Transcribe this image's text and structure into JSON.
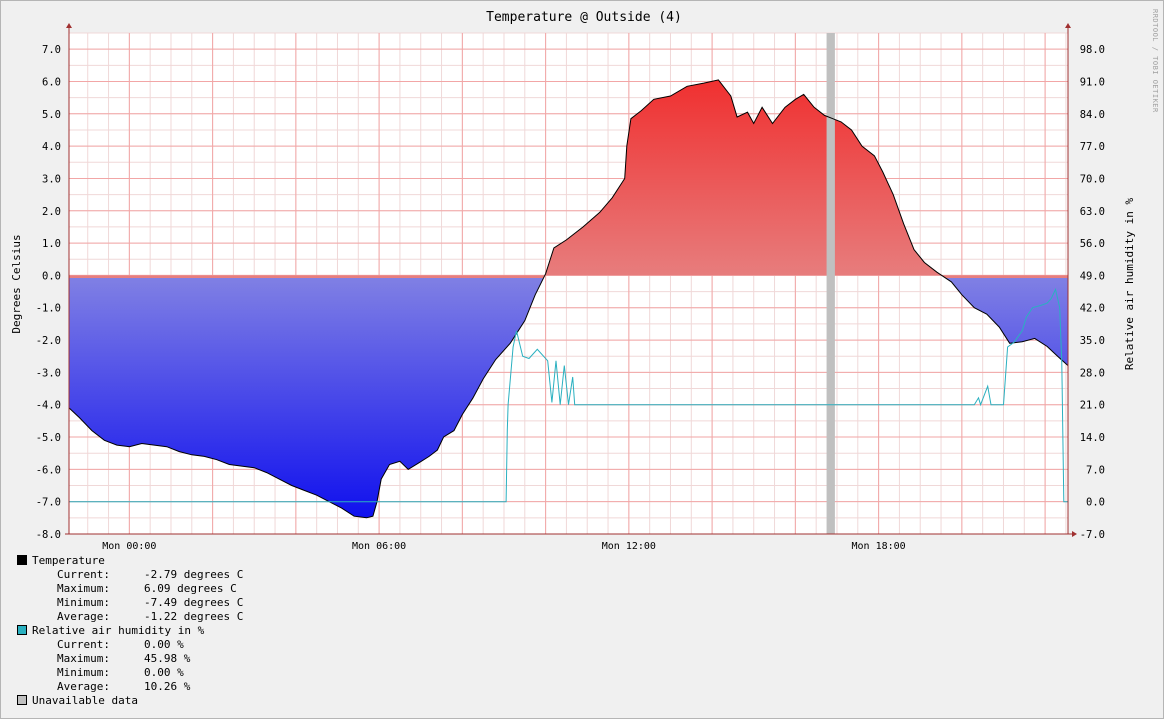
{
  "watermark": "RRDTOOL / TOBI OETIKER",
  "chart_data": {
    "type": "area",
    "title": "Temperature @ Outside (4)",
    "ylabel": "Degrees Celsius",
    "y2label": "Relative air humidity in %",
    "ylim": [
      -8.0,
      7.5
    ],
    "y2lim": [
      -7.0,
      101.5
    ],
    "yticks": [
      "7.0",
      "6.0",
      "5.0",
      "4.0",
      "3.0",
      "2.0",
      "1.0",
      "0.0",
      "-1.0",
      "-2.0",
      "-3.0",
      "-4.0",
      "-5.0",
      "-6.0",
      "-7.0",
      "-8.0"
    ],
    "y2ticks": [
      "98.0",
      "91.0",
      "84.0",
      "77.0",
      "70.0",
      "63.0",
      "56.0",
      "49.0",
      "42.0",
      "35.0",
      "28.0",
      "21.0",
      "14.0",
      "7.0",
      "0.0",
      "-7.0"
    ],
    "xlim": [
      -1.45,
      22.55
    ],
    "xunit": "hours",
    "xticks": [
      {
        "x": 0,
        "label": "Mon 00:00"
      },
      {
        "x": 6,
        "label": "Mon 06:00"
      },
      {
        "x": 12,
        "label": "Mon 12:00"
      },
      {
        "x": 18,
        "label": "Mon 18:00"
      }
    ],
    "grid": true,
    "series": [
      {
        "name": "Temperature",
        "axis": "left",
        "color_positive": "#f03030",
        "color_negative": "#1010ee",
        "points": [
          [
            -1.45,
            -4.1
          ],
          [
            -1.2,
            -4.4
          ],
          [
            -0.9,
            -4.8
          ],
          [
            -0.6,
            -5.1
          ],
          [
            -0.3,
            -5.25
          ],
          [
            0,
            -5.3
          ],
          [
            0.3,
            -5.2
          ],
          [
            0.6,
            -5.25
          ],
          [
            0.9,
            -5.3
          ],
          [
            1.2,
            -5.45
          ],
          [
            1.5,
            -5.55
          ],
          [
            1.8,
            -5.6
          ],
          [
            2.1,
            -5.7
          ],
          [
            2.4,
            -5.85
          ],
          [
            2.7,
            -5.9
          ],
          [
            3.0,
            -5.95
          ],
          [
            3.3,
            -6.1
          ],
          [
            3.6,
            -6.3
          ],
          [
            3.9,
            -6.5
          ],
          [
            4.2,
            -6.65
          ],
          [
            4.5,
            -6.8
          ],
          [
            4.8,
            -7.0
          ],
          [
            5.1,
            -7.2
          ],
          [
            5.4,
            -7.45
          ],
          [
            5.7,
            -7.5
          ],
          [
            5.85,
            -7.45
          ],
          [
            5.95,
            -7.0
          ],
          [
            6.05,
            -6.3
          ],
          [
            6.25,
            -5.85
          ],
          [
            6.5,
            -5.75
          ],
          [
            6.7,
            -6.0
          ],
          [
            6.95,
            -5.8
          ],
          [
            7.2,
            -5.6
          ],
          [
            7.4,
            -5.4
          ],
          [
            7.55,
            -5.0
          ],
          [
            7.8,
            -4.8
          ],
          [
            8.0,
            -4.3
          ],
          [
            8.25,
            -3.8
          ],
          [
            8.5,
            -3.2
          ],
          [
            8.8,
            -2.6
          ],
          [
            9.15,
            -2.1
          ],
          [
            9.5,
            -1.4
          ],
          [
            9.75,
            -0.6
          ],
          [
            10.0,
            0.05
          ],
          [
            10.2,
            0.85
          ],
          [
            10.5,
            1.1
          ],
          [
            10.9,
            1.5
          ],
          [
            11.3,
            1.95
          ],
          [
            11.6,
            2.4
          ],
          [
            11.9,
            3.0
          ],
          [
            11.95,
            4.0
          ],
          [
            12.05,
            4.85
          ],
          [
            12.3,
            5.1
          ],
          [
            12.6,
            5.45
          ],
          [
            13.0,
            5.55
          ],
          [
            13.4,
            5.85
          ],
          [
            13.8,
            5.95
          ],
          [
            14.15,
            6.05
          ],
          [
            14.45,
            5.55
          ],
          [
            14.6,
            4.9
          ],
          [
            14.85,
            5.05
          ],
          [
            15.0,
            4.7
          ],
          [
            15.2,
            5.2
          ],
          [
            15.45,
            4.7
          ],
          [
            15.75,
            5.2
          ],
          [
            16.0,
            5.45
          ],
          [
            16.2,
            5.6
          ],
          [
            16.45,
            5.2
          ],
          [
            16.7,
            4.95
          ],
          [
            16.9,
            4.85
          ],
          [
            17.1,
            4.75
          ],
          [
            17.35,
            4.5
          ],
          [
            17.6,
            4.0
          ],
          [
            17.9,
            3.7
          ],
          [
            18.1,
            3.2
          ],
          [
            18.35,
            2.5
          ],
          [
            18.6,
            1.6
          ],
          [
            18.85,
            0.8
          ],
          [
            19.1,
            0.4
          ],
          [
            19.4,
            0.1
          ],
          [
            19.75,
            -0.2
          ],
          [
            20.0,
            -0.6
          ],
          [
            20.3,
            -1.0
          ],
          [
            20.6,
            -1.2
          ],
          [
            20.9,
            -1.6
          ],
          [
            21.15,
            -2.1
          ],
          [
            21.45,
            -2.05
          ],
          [
            21.75,
            -1.95
          ],
          [
            22.05,
            -2.2
          ],
          [
            22.3,
            -2.5
          ],
          [
            22.55,
            -2.79
          ]
        ]
      },
      {
        "name": "Relative air humidity in %",
        "axis": "right",
        "color": "#2ab0c0",
        "points": [
          [
            -1.45,
            0.0
          ],
          [
            8.85,
            0.0
          ],
          [
            9.05,
            0.0
          ],
          [
            9.08,
            15.5
          ],
          [
            9.1,
            21.0
          ],
          [
            9.22,
            33.5
          ],
          [
            9.3,
            37.0
          ],
          [
            9.45,
            31.5
          ],
          [
            9.6,
            31.0
          ],
          [
            9.8,
            33.0
          ],
          [
            10.05,
            30.5
          ],
          [
            10.15,
            21.5
          ],
          [
            10.25,
            30.5
          ],
          [
            10.35,
            21.0
          ],
          [
            10.45,
            29.5
          ],
          [
            10.55,
            21.0
          ],
          [
            10.65,
            27.0
          ],
          [
            10.7,
            21.0
          ],
          [
            20.3,
            21.0
          ],
          [
            20.4,
            22.5
          ],
          [
            20.45,
            21.0
          ],
          [
            20.62,
            25.0
          ],
          [
            20.7,
            21.0
          ],
          [
            21.0,
            21.0
          ],
          [
            21.1,
            33.5
          ],
          [
            21.25,
            34.5
          ],
          [
            21.45,
            37.0
          ],
          [
            21.55,
            40.0
          ],
          [
            21.7,
            42.0
          ],
          [
            21.9,
            42.5
          ],
          [
            22.05,
            43.0
          ],
          [
            22.15,
            44.0
          ],
          [
            22.25,
            45.98
          ],
          [
            22.3,
            44.0
          ],
          [
            22.35,
            42.0
          ],
          [
            22.4,
            30.0
          ],
          [
            22.45,
            0.0
          ],
          [
            22.55,
            0.0
          ]
        ]
      }
    ],
    "unavailable": [
      [
        16.75,
        16.95
      ]
    ],
    "legend": [
      {
        "name": "Temperature",
        "color": "#000000",
        "stats": [
          {
            "label": "Current:",
            "value": "-2.79 degrees C"
          },
          {
            "label": "Maximum:",
            "value": "6.09 degrees C"
          },
          {
            "label": "Minimum:",
            "value": "-7.49 degrees C"
          },
          {
            "label": "Average:",
            "value": "-1.22 degrees C"
          }
        ]
      },
      {
        "name": "Relative air humidity in %",
        "color": "#2ab0c0",
        "stats": [
          {
            "label": "Current:",
            "value": "0.00 %"
          },
          {
            "label": "Maximum:",
            "value": "45.98 %"
          },
          {
            "label": "Minimum:",
            "value": "0.00 %"
          },
          {
            "label": "Average:",
            "value": "10.26 %"
          }
        ]
      },
      {
        "name": "Unavailable data",
        "color": "#c0c0c0",
        "stats": []
      }
    ]
  }
}
